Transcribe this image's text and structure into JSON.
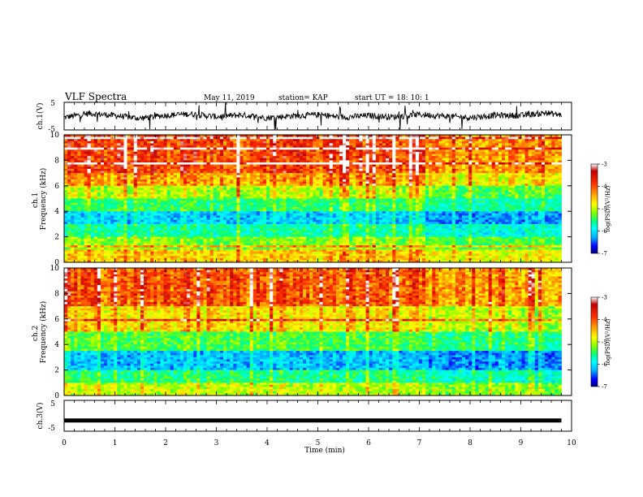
{
  "header": {
    "title": "VLF Spectra",
    "date": "May 11, 2019",
    "station": "station= KAP",
    "start": "start  UT  =   18: 10: 1"
  },
  "colors": {
    "spectrogram_scale": [
      "#000080",
      "#0000ff",
      "#00b0ff",
      "#00ffff",
      "#00ff80",
      "#80ff00",
      "#ffff00",
      "#ffa000",
      "#ff3000",
      "#c00000",
      "#ffffff"
    ],
    "trace": "#000000"
  },
  "chart_data": [
    {
      "type": "line",
      "panel": "ch1-waveform",
      "ylabel": "ch.1(V)",
      "ylim": [
        -5,
        5
      ],
      "y_ticks": [
        "5",
        "-5"
      ],
      "x": [
        0,
        0.5,
        1,
        1.5,
        2,
        2.5,
        3,
        3.5,
        4,
        4.5,
        5,
        5.5,
        6,
        6.5,
        7,
        7.5,
        8,
        8.5,
        9,
        9.5,
        9.8
      ],
      "values": [
        -0.5,
        1.0,
        0.2,
        -0.8,
        0.3,
        0.8,
        -0.2,
        0.4,
        -0.6,
        0.1,
        0.5,
        -0.4,
        0.2,
        -0.3,
        0.6,
        0.0,
        -0.5,
        0.3,
        0.2,
        1.2,
        0.4
      ],
      "xlim": [
        0,
        10
      ]
    },
    {
      "type": "heatmap",
      "panel": "ch1-spectrogram",
      "ylabel": "ch.1\nFrequency (kHz)",
      "ylim": [
        0,
        10
      ],
      "y_ticks": [
        "0",
        "2",
        "4",
        "6",
        "8",
        "10"
      ],
      "xlim": [
        0,
        10
      ],
      "data_end_min": 9.8,
      "colorbar": {
        "label": "log(PSD)(V²/Hz)",
        "range": [
          -7,
          -3
        ],
        "ticks": [
          "-3",
          "-4",
          "-5",
          "-6",
          "-7"
        ]
      },
      "band_psd_by_freq_kHz": [
        {
          "freq": [
            0,
            1
          ],
          "log_psd": -4.2
        },
        {
          "freq": [
            1,
            2
          ],
          "log_psd": -4.8
        },
        {
          "freq": [
            2,
            3
          ],
          "log_psd": -5.3
        },
        {
          "freq": [
            3,
            4
          ],
          "log_psd": -5.8
        },
        {
          "freq": [
            4,
            5
          ],
          "log_psd": -5.1
        },
        {
          "freq": [
            5,
            6
          ],
          "log_psd": -4.6
        },
        {
          "freq": [
            6,
            7
          ],
          "log_psd": -4.0
        },
        {
          "freq": [
            7,
            10
          ],
          "log_psd": -3.6
        }
      ]
    },
    {
      "type": "heatmap",
      "panel": "ch2-spectrogram",
      "ylabel": "ch.2\nFrequency (kHz)",
      "ylim": [
        0,
        10
      ],
      "y_ticks": [
        "0",
        "2",
        "4",
        "6",
        "8",
        "10"
      ],
      "xlim": [
        0,
        10
      ],
      "data_end_min": 9.8,
      "colorbar": {
        "label": "log(PSD)(V²/Hz)",
        "range": [
          -7,
          -3
        ],
        "ticks": [
          "-3",
          "-4",
          "-5",
          "-6",
          "-7"
        ]
      },
      "band_psd_by_freq_kHz": [
        {
          "freq": [
            0,
            1
          ],
          "log_psd": -4.6
        },
        {
          "freq": [
            1,
            2
          ],
          "log_psd": -5.2
        },
        {
          "freq": [
            2,
            3.5
          ],
          "log_psd": -5.9
        },
        {
          "freq": [
            3.5,
            5
          ],
          "log_psd": -5.0
        },
        {
          "freq": [
            5,
            7
          ],
          "log_psd": -4.3
        },
        {
          "freq": [
            7,
            10
          ],
          "log_psd": -3.7
        }
      ]
    },
    {
      "type": "line",
      "panel": "ch3-waveform",
      "ylabel": "ch.3(V)",
      "ylim": [
        -5,
        5
      ],
      "y_ticks": [
        "5",
        "-5"
      ],
      "x": [
        0,
        9.8
      ],
      "values": [
        -1.5,
        -1.5
      ],
      "xlim": [
        0,
        10
      ],
      "xlabel": "Time (min)",
      "x_ticks": [
        "0",
        "1",
        "2",
        "3",
        "4",
        "5",
        "6",
        "7",
        "8",
        "9",
        "10"
      ]
    }
  ]
}
